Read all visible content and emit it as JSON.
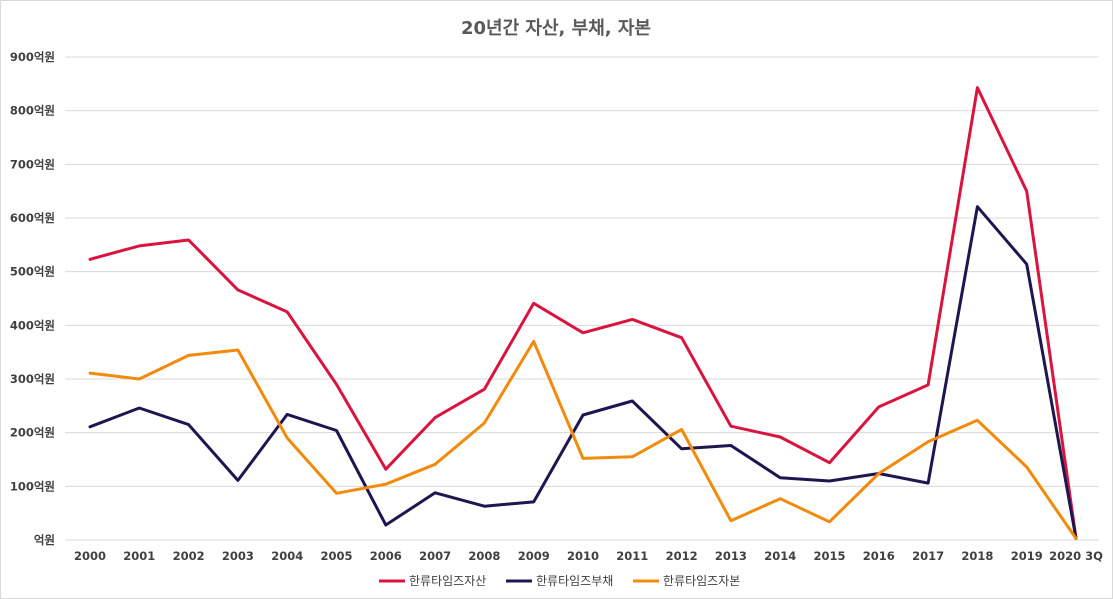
{
  "chart_data": {
    "type": "line",
    "title": "20년간 자산, 부채, 자본",
    "categories": [
      "2000",
      "2001",
      "2002",
      "2003",
      "2004",
      "2005",
      "2006",
      "2007",
      "2008",
      "2009",
      "2010",
      "2011",
      "2012",
      "2013",
      "2014",
      "2015",
      "2016",
      "2017",
      "2018",
      "2019",
      "2020 3Q"
    ],
    "yticks": [
      "억원",
      "100억원",
      "200억원",
      "300억원",
      "400억원",
      "500억원",
      "600억원",
      "700억원",
      "800억원",
      "900억원"
    ],
    "ylim": [
      0,
      900
    ],
    "grid": true,
    "legend_position": "bottom",
    "series": [
      {
        "name": "한류타임즈자산",
        "color": "#d9143f",
        "values": [
          523,
          548,
          559,
          466,
          425,
          290,
          132,
          228,
          281,
          441,
          386,
          411,
          377,
          212,
          192,
          144,
          248,
          289,
          843,
          650,
          3
        ]
      },
      {
        "name": "한류타임즈부채",
        "color": "#1f1651",
        "values": [
          211,
          246,
          215,
          111,
          234,
          204,
          28,
          88,
          63,
          71,
          233,
          259,
          170,
          176,
          116,
          110,
          124,
          106,
          621,
          514,
          3
        ]
      },
      {
        "name": "한류타임즈자본",
        "color": "#f28a0c",
        "values": [
          311,
          300,
          344,
          354,
          190,
          87,
          104,
          141,
          218,
          370,
          152,
          155,
          206,
          36,
          77,
          34,
          124,
          183,
          223,
          136,
          3
        ]
      }
    ]
  }
}
